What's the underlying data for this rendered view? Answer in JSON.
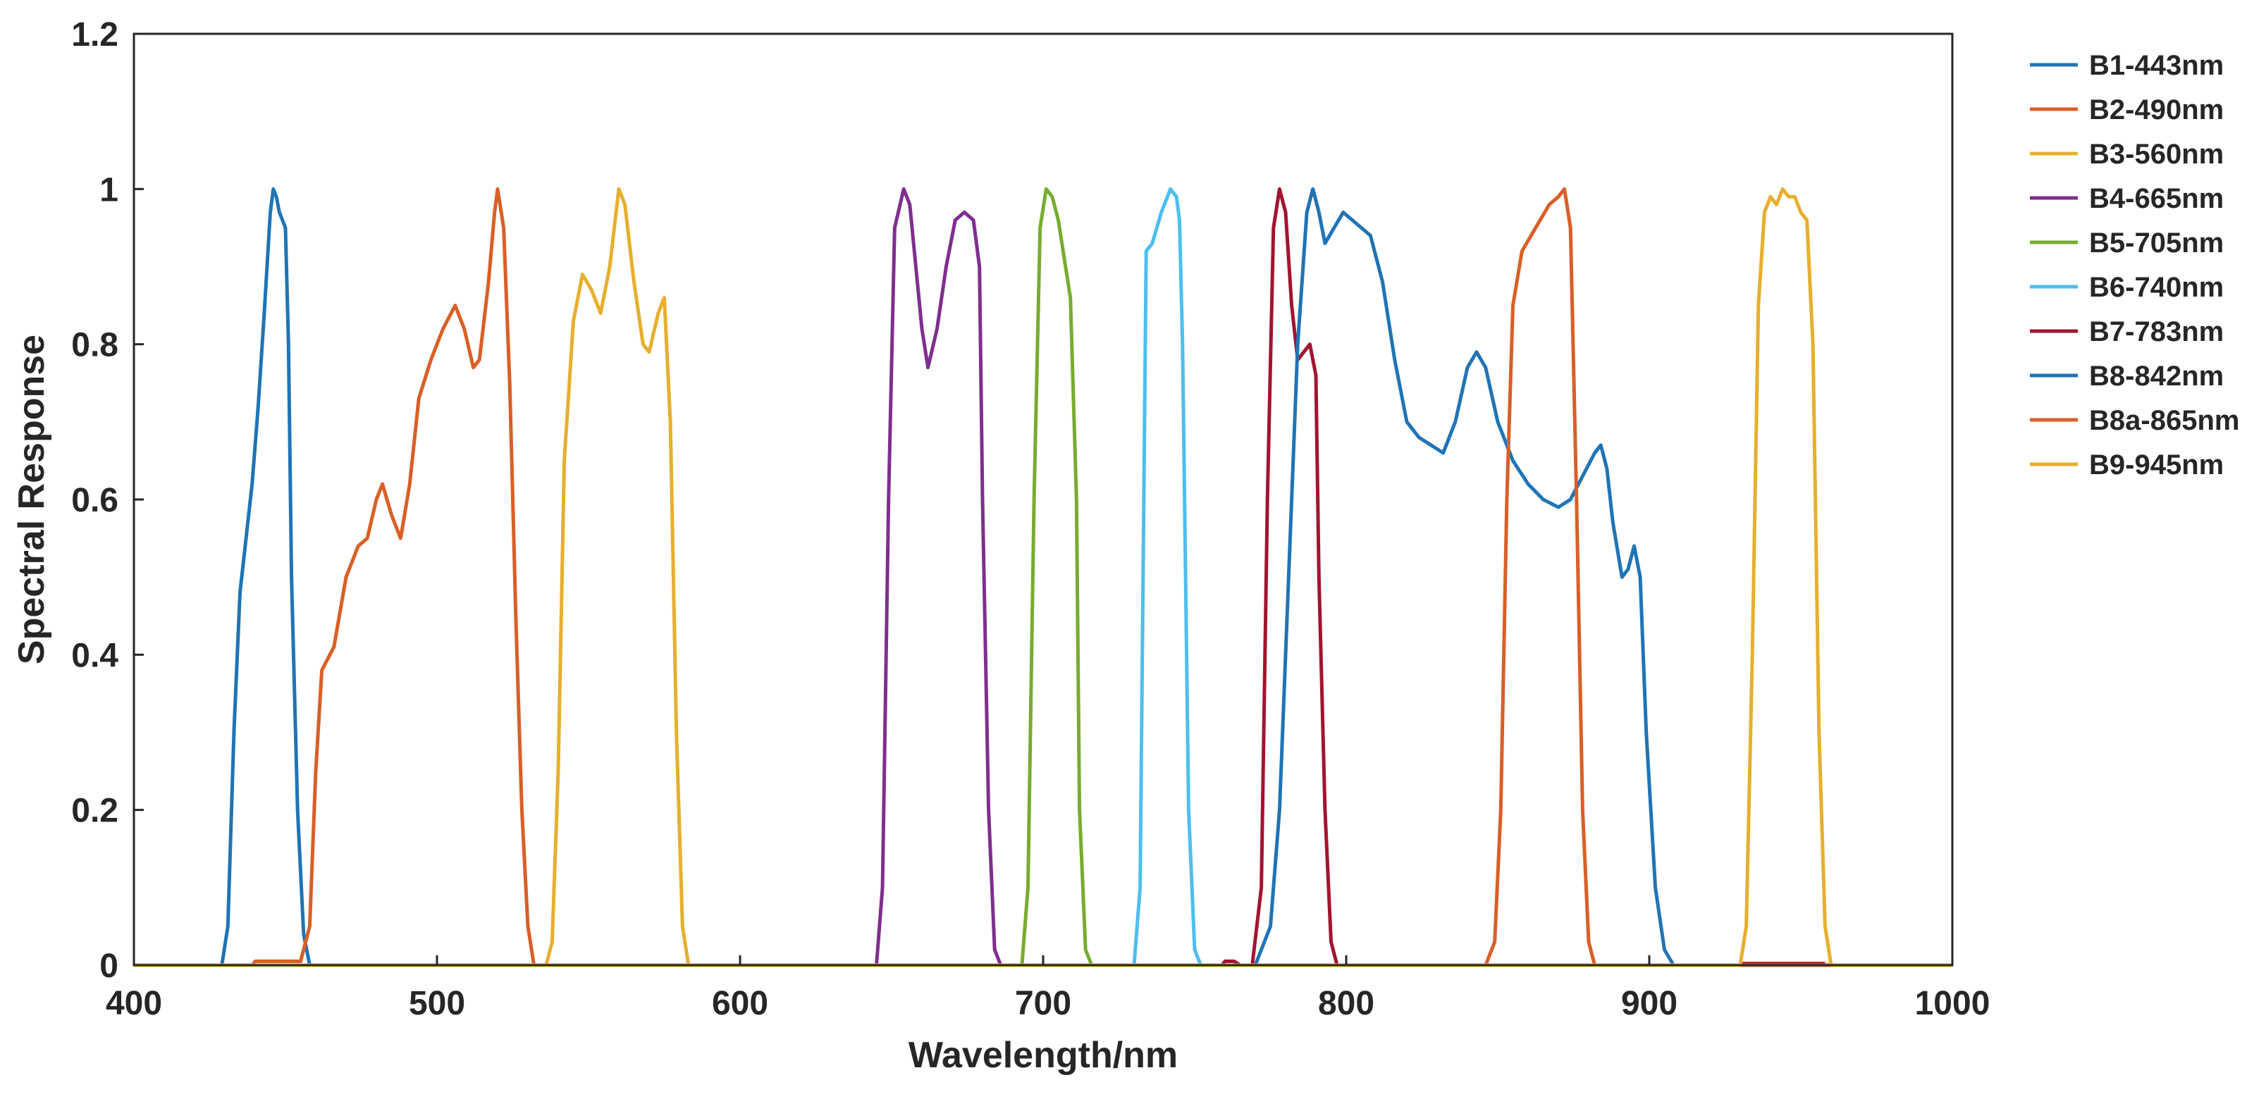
{
  "chart_data": {
    "type": "line",
    "title": "",
    "xlabel": "Wavelength/nm",
    "ylabel": "Spectral Response",
    "xlim": [
      400,
      1000
    ],
    "ylim": [
      0,
      1.2
    ],
    "xticks": [
      400,
      500,
      600,
      700,
      800,
      900,
      1000
    ],
    "yticks": [
      0,
      0.2,
      0.4,
      0.6,
      0.8,
      1,
      1.2
    ],
    "xtick_labels": [
      "400",
      "500",
      "600",
      "700",
      "800",
      "900",
      "1000"
    ],
    "ytick_labels": [
      "0",
      "0.2",
      "0.4",
      "0.6",
      "0.8",
      "1",
      "1.2"
    ],
    "grid": false,
    "legend_position": "outside-right",
    "series": [
      {
        "name": "B1-443nm",
        "color": "#1f74b5",
        "points": [
          [
            400,
            0
          ],
          [
            429,
            0
          ],
          [
            431,
            0.05
          ],
          [
            433,
            0.3
          ],
          [
            435,
            0.48
          ],
          [
            437,
            0.55
          ],
          [
            439,
            0.62
          ],
          [
            441,
            0.72
          ],
          [
            443,
            0.84
          ],
          [
            445,
            0.97
          ],
          [
            446,
            1.0
          ],
          [
            447,
            0.99
          ],
          [
            448,
            0.97
          ],
          [
            449,
            0.96
          ],
          [
            450,
            0.95
          ],
          [
            451,
            0.8
          ],
          [
            452,
            0.5
          ],
          [
            454,
            0.2
          ],
          [
            456,
            0.04
          ],
          [
            458,
            0
          ],
          [
            1000,
            0
          ]
        ]
      },
      {
        "name": "B2-490nm",
        "color": "#d95f26",
        "points": [
          [
            400,
            0
          ],
          [
            439,
            0
          ],
          [
            440,
            0.005
          ],
          [
            455,
            0.005
          ],
          [
            458,
            0.05
          ],
          [
            460,
            0.25
          ],
          [
            462,
            0.38
          ],
          [
            466,
            0.41
          ],
          [
            470,
            0.5
          ],
          [
            474,
            0.54
          ],
          [
            477,
            0.55
          ],
          [
            480,
            0.6
          ],
          [
            482,
            0.62
          ],
          [
            485,
            0.58
          ],
          [
            488,
            0.55
          ],
          [
            491,
            0.62
          ],
          [
            494,
            0.73
          ],
          [
            498,
            0.78
          ],
          [
            502,
            0.82
          ],
          [
            506,
            0.85
          ],
          [
            509,
            0.82
          ],
          [
            512,
            0.77
          ],
          [
            514,
            0.78
          ],
          [
            517,
            0.88
          ],
          [
            519,
            0.97
          ],
          [
            520,
            1.0
          ],
          [
            522,
            0.95
          ],
          [
            524,
            0.75
          ],
          [
            526,
            0.45
          ],
          [
            528,
            0.2
          ],
          [
            530,
            0.05
          ],
          [
            532,
            0
          ],
          [
            1000,
            0
          ]
        ]
      },
      {
        "name": "B3-560nm",
        "color": "#e6af2e",
        "points": [
          [
            400,
            0
          ],
          [
            536,
            0
          ],
          [
            538,
            0.03
          ],
          [
            540,
            0.25
          ],
          [
            542,
            0.65
          ],
          [
            545,
            0.83
          ],
          [
            548,
            0.89
          ],
          [
            551,
            0.87
          ],
          [
            554,
            0.84
          ],
          [
            557,
            0.9
          ],
          [
            560,
            1.0
          ],
          [
            562,
            0.98
          ],
          [
            565,
            0.88
          ],
          [
            568,
            0.8
          ],
          [
            570,
            0.79
          ],
          [
            573,
            0.84
          ],
          [
            575,
            0.86
          ],
          [
            577,
            0.7
          ],
          [
            579,
            0.3
          ],
          [
            581,
            0.05
          ],
          [
            583,
            0
          ],
          [
            1000,
            0
          ]
        ]
      },
      {
        "name": "B4-665nm",
        "color": "#7e2f8e",
        "points": [
          [
            400,
            0
          ],
          [
            645,
            0
          ],
          [
            647,
            0.1
          ],
          [
            649,
            0.6
          ],
          [
            651,
            0.95
          ],
          [
            654,
            1.0
          ],
          [
            656,
            0.98
          ],
          [
            658,
            0.9
          ],
          [
            660,
            0.82
          ],
          [
            662,
            0.77
          ],
          [
            665,
            0.82
          ],
          [
            668,
            0.9
          ],
          [
            671,
            0.96
          ],
          [
            674,
            0.97
          ],
          [
            677,
            0.96
          ],
          [
            679,
            0.9
          ],
          [
            680,
            0.6
          ],
          [
            682,
            0.2
          ],
          [
            684,
            0.02
          ],
          [
            686,
            0
          ],
          [
            1000,
            0
          ]
        ]
      },
      {
        "name": "B5-705nm",
        "color": "#77ac30",
        "points": [
          [
            400,
            0
          ],
          [
            693,
            0
          ],
          [
            695,
            0.1
          ],
          [
            697,
            0.6
          ],
          [
            699,
            0.95
          ],
          [
            701,
            1.0
          ],
          [
            703,
            0.99
          ],
          [
            705,
            0.96
          ],
          [
            707,
            0.91
          ],
          [
            709,
            0.86
          ],
          [
            711,
            0.6
          ],
          [
            712,
            0.2
          ],
          [
            714,
            0.02
          ],
          [
            716,
            0
          ],
          [
            1000,
            0
          ]
        ]
      },
      {
        "name": "B6-740nm",
        "color": "#4dbeee",
        "points": [
          [
            400,
            0
          ],
          [
            730,
            0
          ],
          [
            732,
            0.1
          ],
          [
            734,
            0.92
          ],
          [
            736,
            0.93
          ],
          [
            739,
            0.97
          ],
          [
            742,
            1.0
          ],
          [
            744,
            0.99
          ],
          [
            745,
            0.96
          ],
          [
            746,
            0.8
          ],
          [
            748,
            0.2
          ],
          [
            750,
            0.02
          ],
          [
            752,
            0
          ],
          [
            1000,
            0
          ]
        ]
      },
      {
        "name": "B7-783nm",
        "color": "#a2142f",
        "points": [
          [
            400,
            0
          ],
          [
            759,
            0
          ],
          [
            760,
            0.005
          ],
          [
            763,
            0.005
          ],
          [
            765,
            0
          ],
          [
            769,
            0
          ],
          [
            772,
            0.1
          ],
          [
            774,
            0.6
          ],
          [
            776,
            0.95
          ],
          [
            778,
            1.0
          ],
          [
            780,
            0.97
          ],
          [
            782,
            0.85
          ],
          [
            784,
            0.78
          ],
          [
            786,
            0.79
          ],
          [
            788,
            0.8
          ],
          [
            790,
            0.76
          ],
          [
            791,
            0.5
          ],
          [
            793,
            0.2
          ],
          [
            795,
            0.03
          ],
          [
            797,
            0
          ],
          [
            1000,
            0
          ]
        ]
      },
      {
        "name": "B8-842nm",
        "color": "#1f74b5",
        "points": [
          [
            400,
            0
          ],
          [
            770,
            0
          ],
          [
            775,
            0.05
          ],
          [
            778,
            0.2
          ],
          [
            781,
            0.5
          ],
          [
            784,
            0.8
          ],
          [
            787,
            0.97
          ],
          [
            789,
            1.0
          ],
          [
            791,
            0.97
          ],
          [
            793,
            0.93
          ],
          [
            796,
            0.95
          ],
          [
            799,
            0.97
          ],
          [
            802,
            0.96
          ],
          [
            805,
            0.95
          ],
          [
            808,
            0.94
          ],
          [
            812,
            0.88
          ],
          [
            816,
            0.78
          ],
          [
            820,
            0.7
          ],
          [
            824,
            0.68
          ],
          [
            828,
            0.67
          ],
          [
            832,
            0.66
          ],
          [
            836,
            0.7
          ],
          [
            840,
            0.77
          ],
          [
            843,
            0.79
          ],
          [
            846,
            0.77
          ],
          [
            850,
            0.7
          ],
          [
            855,
            0.65
          ],
          [
            860,
            0.62
          ],
          [
            865,
            0.6
          ],
          [
            870,
            0.59
          ],
          [
            874,
            0.6
          ],
          [
            878,
            0.63
          ],
          [
            882,
            0.66
          ],
          [
            884,
            0.67
          ],
          [
            886,
            0.64
          ],
          [
            888,
            0.57
          ],
          [
            891,
            0.5
          ],
          [
            893,
            0.51
          ],
          [
            895,
            0.54
          ],
          [
            897,
            0.5
          ],
          [
            899,
            0.3
          ],
          [
            902,
            0.1
          ],
          [
            905,
            0.02
          ],
          [
            908,
            0
          ],
          [
            1000,
            0
          ]
        ]
      },
      {
        "name": "B8a-865nm",
        "color": "#d95f26",
        "points": [
          [
            400,
            0
          ],
          [
            846,
            0
          ],
          [
            849,
            0.03
          ],
          [
            851,
            0.2
          ],
          [
            853,
            0.6
          ],
          [
            855,
            0.85
          ],
          [
            858,
            0.92
          ],
          [
            861,
            0.94
          ],
          [
            864,
            0.96
          ],
          [
            867,
            0.98
          ],
          [
            870,
            0.99
          ],
          [
            872,
            1.0
          ],
          [
            874,
            0.95
          ],
          [
            876,
            0.6
          ],
          [
            878,
            0.2
          ],
          [
            880,
            0.03
          ],
          [
            882,
            0
          ],
          [
            1000,
            0
          ]
        ]
      },
      {
        "name": "B9-945nm",
        "color": "#e6af2e",
        "points": [
          [
            400,
            0
          ],
          [
            930,
            0
          ],
          [
            932,
            0.05
          ],
          [
            934,
            0.4
          ],
          [
            936,
            0.85
          ],
          [
            938,
            0.97
          ],
          [
            940,
            0.99
          ],
          [
            942,
            0.98
          ],
          [
            944,
            1.0
          ],
          [
            946,
            0.99
          ],
          [
            948,
            0.99
          ],
          [
            950,
            0.97
          ],
          [
            952,
            0.96
          ],
          [
            954,
            0.8
          ],
          [
            956,
            0.3
          ],
          [
            958,
            0.05
          ],
          [
            960,
            0
          ],
          [
            1000,
            0
          ]
        ]
      }
    ],
    "extra_traces": [
      {
        "color": "#a2142f",
        "points": [
          [
            930,
            0.002
          ],
          [
            958,
            0.002
          ]
        ]
      }
    ]
  }
}
